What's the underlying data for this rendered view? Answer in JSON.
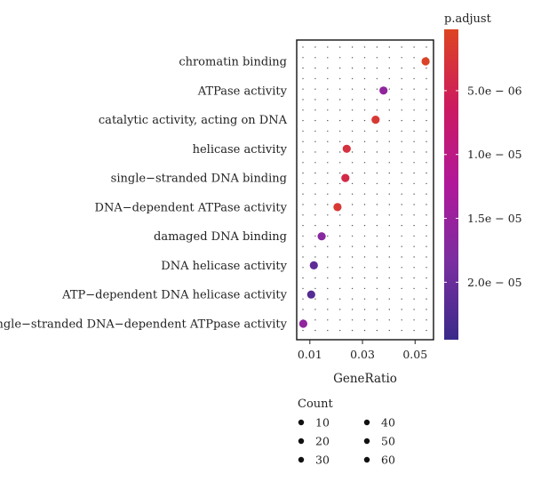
{
  "chart_data": {
    "type": "scatter",
    "xlabel": "GeneRatio",
    "x_ticks": [
      0.01,
      0.03,
      0.05
    ],
    "x_tick_labels": [
      "0.01",
      "0.03",
      "0.05"
    ],
    "xlim": [
      0.005,
      0.057
    ],
    "categories": [
      "chromatin binding",
      "ATPase activity",
      "catalytic activity, acting on DNA",
      "helicase activity",
      "single−stranded DNA binding",
      "DNA−dependent ATPase activity",
      "damaged DNA binding",
      "DNA helicase activity",
      "ATP−dependent DNA helicase activity",
      "single−stranded DNA−dependent ATPpase activity"
    ],
    "points": [
      {
        "category": "chromatin binding",
        "x": 0.054,
        "p_adjust": 5e-07
      },
      {
        "category": "ATPase activity",
        "x": 0.038,
        "p_adjust": 1.6e-05
      },
      {
        "category": "catalytic activity, acting on DNA",
        "x": 0.035,
        "p_adjust": 2e-06
      },
      {
        "category": "helicase activity",
        "x": 0.024,
        "p_adjust": 3e-06
      },
      {
        "category": "single−stranded DNA binding",
        "x": 0.0235,
        "p_adjust": 4e-06
      },
      {
        "category": "DNA−dependent ATPase activity",
        "x": 0.0205,
        "p_adjust": 2e-06
      },
      {
        "category": "damaged DNA binding",
        "x": 0.0145,
        "p_adjust": 1.7e-05
      },
      {
        "category": "DNA helicase activity",
        "x": 0.0115,
        "p_adjust": 2.1e-05
      },
      {
        "category": "ATP−dependent DNA helicase activity",
        "x": 0.0105,
        "p_adjust": 2.2e-05
      },
      {
        "category": "single−stranded DNA−dependent ATPpase activity",
        "x": 0.0075,
        "p_adjust": 1.6e-05
      }
    ],
    "color_legend": {
      "title": "p.adjust",
      "ticks": [
        {
          "value": 5e-06,
          "label": "5.0e − 06"
        },
        {
          "value": 1e-05,
          "label": "1.0e − 05"
        },
        {
          "value": 1.5e-05,
          "label": "1.5e − 05"
        },
        {
          "value": 2e-05,
          "label": "2.0e − 05"
        }
      ],
      "range": [
        2e-07,
        2.45e-05
      ],
      "colors": [
        "#dd4422",
        "#cc1a60",
        "#b0189a",
        "#7a2ea0",
        "#3a2a8a"
      ]
    },
    "size_legend": {
      "title": "Count",
      "entries": [
        "10",
        "20",
        "30",
        "40",
        "50",
        "60"
      ]
    },
    "grid": true,
    "legend_position": "right"
  }
}
